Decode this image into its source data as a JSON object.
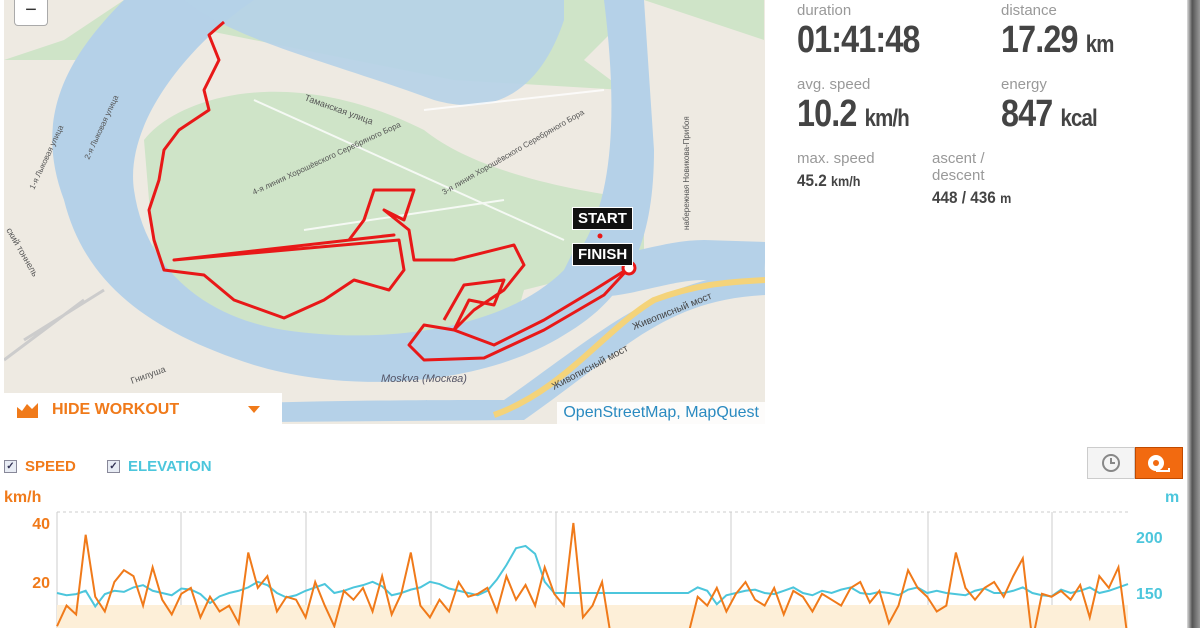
{
  "map": {
    "zoom_out_label": "−",
    "attribution": "OpenStreetMap, MapQuest",
    "start_label": "START",
    "finish_label": "FINISH",
    "labels": [
      "Moskva (Москва)",
      "Живописный мост",
      "Живописный мост",
      "Таманская улица",
      "3-я линия Хорошёвского Серебряного Бора",
      "4-я линия Хорошёвского Серебряного Бора",
      "набережная Новикова-Прибоя",
      "Гнилуша",
      "1-я Лыковая улица",
      "2-я Лыковая улица",
      "ский тоннель"
    ],
    "track_color": "#e81818"
  },
  "toolbar": {
    "hide_workout_label": "HIDE WORKOUT",
    "icon": "area-chart-icon"
  },
  "stats": {
    "duration": {
      "label": "duration",
      "value": "01:41:48"
    },
    "distance": {
      "label": "distance",
      "value": "17.29",
      "unit": "km"
    },
    "avg_speed": {
      "label": "avg. speed",
      "value": "10.2",
      "unit": "km/h"
    },
    "energy": {
      "label": "energy",
      "value": "847",
      "unit": "kcal"
    },
    "max_speed": {
      "label": "max. speed",
      "value": "45.2",
      "unit": "km/h"
    },
    "ascent": {
      "label_1": "ascent /",
      "label_2": "descent",
      "value": "448 / 436",
      "unit": "m"
    }
  },
  "chart_controls": {
    "speed_label": "SPEED",
    "speed_checked": true,
    "elevation_label": "ELEVATION",
    "elevation_checked": true,
    "time_button_icon": "clock-icon",
    "distance_button_icon": "tape-measure-icon",
    "active_mode": "distance"
  },
  "colors": {
    "speed": "#f07a1a",
    "elevation": "#4cc6dc",
    "elevation_fill": "#fdefd8"
  },
  "chart_data": {
    "type": "line",
    "series": [
      {
        "name": "SPEED",
        "unit": "km/h",
        "axis": "left",
        "values": [
          5,
          12,
          9,
          36,
          15,
          10,
          20,
          24,
          22,
          12,
          25,
          14,
          9,
          16,
          18,
          8,
          15,
          10,
          12,
          6,
          30,
          18,
          22,
          10,
          15,
          14,
          8,
          20,
          12,
          5,
          17,
          14,
          18,
          10,
          22,
          9,
          16,
          30,
          12,
          8,
          14,
          10,
          20,
          15,
          16,
          18,
          10,
          22,
          14,
          19,
          12,
          25,
          16,
          12,
          40,
          8,
          12,
          20,
          0,
          0,
          0,
          0,
          0,
          0,
          0,
          0,
          2,
          15,
          12,
          18,
          10,
          16,
          20,
          14,
          12,
          18,
          9,
          17,
          15,
          10,
          16,
          14,
          12,
          18,
          20,
          13,
          17,
          6,
          12,
          24,
          18,
          15,
          10,
          12,
          30,
          18,
          14,
          18,
          20,
          15,
          22,
          28,
          0,
          16,
          15,
          17,
          14,
          19,
          8,
          22,
          18,
          25,
          0
        ]
      },
      {
        "name": "ELEVATION",
        "unit": "m",
        "axis": "right",
        "values": [
          150,
          148,
          149,
          152,
          138,
          149,
          152,
          151,
          155,
          157,
          152,
          150,
          148,
          154,
          153,
          149,
          141,
          147,
          150,
          152,
          155,
          160,
          157,
          150,
          146,
          148,
          152,
          155,
          158,
          150,
          152,
          155,
          157,
          160,
          156,
          148,
          150,
          153,
          155,
          160,
          158,
          154,
          152,
          150,
          148,
          152,
          162,
          175,
          190,
          192,
          185,
          160,
          150,
          150,
          150,
          150,
          150,
          150,
          150,
          150,
          150,
          150,
          150,
          150,
          150,
          150,
          150,
          155,
          152,
          140,
          148,
          150,
          152,
          153,
          150,
          149,
          152,
          155,
          150,
          148,
          152,
          150,
          153,
          155,
          150,
          149,
          151,
          150,
          148,
          153,
          155,
          150,
          152,
          150,
          149,
          148,
          152,
          154,
          150,
          150,
          152,
          155,
          150,
          148,
          147,
          153,
          150,
          152,
          155,
          150,
          152,
          155,
          158
        ]
      }
    ],
    "y_left": {
      "label": "km/h",
      "ticks": [
        20,
        40
      ],
      "range": [
        0,
        40
      ]
    },
    "y_right": {
      "label": "m",
      "ticks": [
        150,
        200
      ],
      "range": [
        150,
        200
      ]
    },
    "grid": true,
    "legend": "top-left"
  }
}
